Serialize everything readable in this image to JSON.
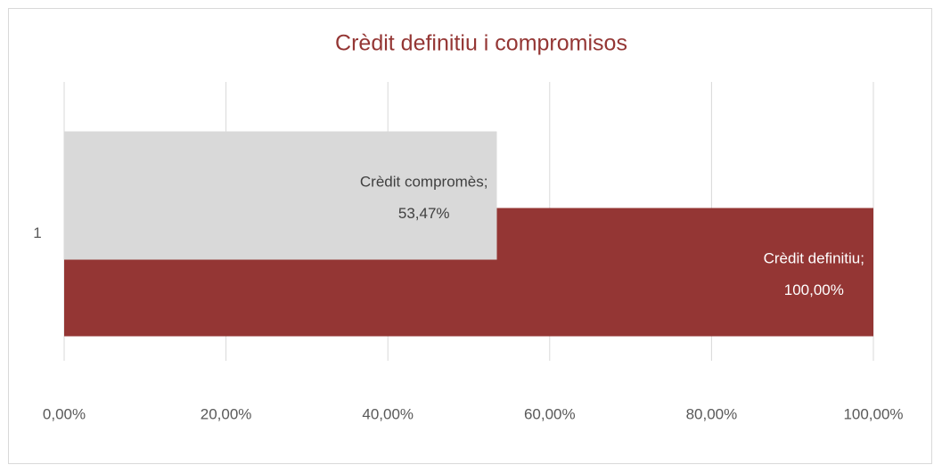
{
  "chart_data": {
    "type": "bar",
    "orientation": "horizontal",
    "title": "Crèdit definitiu i compromisos",
    "categories": [
      "1"
    ],
    "series": [
      {
        "name": "Crèdit definitiu",
        "color": "#943634",
        "values": [
          100
        ],
        "value_labels": [
          "100,00%"
        ],
        "label_color": "#ffffff"
      },
      {
        "name": "Crèdit compromès",
        "color": "#d9d9d9",
        "values": [
          53.47
        ],
        "value_labels": [
          "53,47%"
        ],
        "label_color": "#404040"
      }
    ],
    "label_separator": ";",
    "xlim": [
      0,
      100
    ],
    "xticks": [
      {
        "value": 0,
        "label": "0,00%"
      },
      {
        "value": 20,
        "label": "20,00%"
      },
      {
        "value": 40,
        "label": "40,00%"
      },
      {
        "value": 60,
        "label": "60,00%"
      },
      {
        "value": 80,
        "label": "80,00%"
      },
      {
        "value": 100,
        "label": "100,00%"
      }
    ],
    "grid": true
  }
}
